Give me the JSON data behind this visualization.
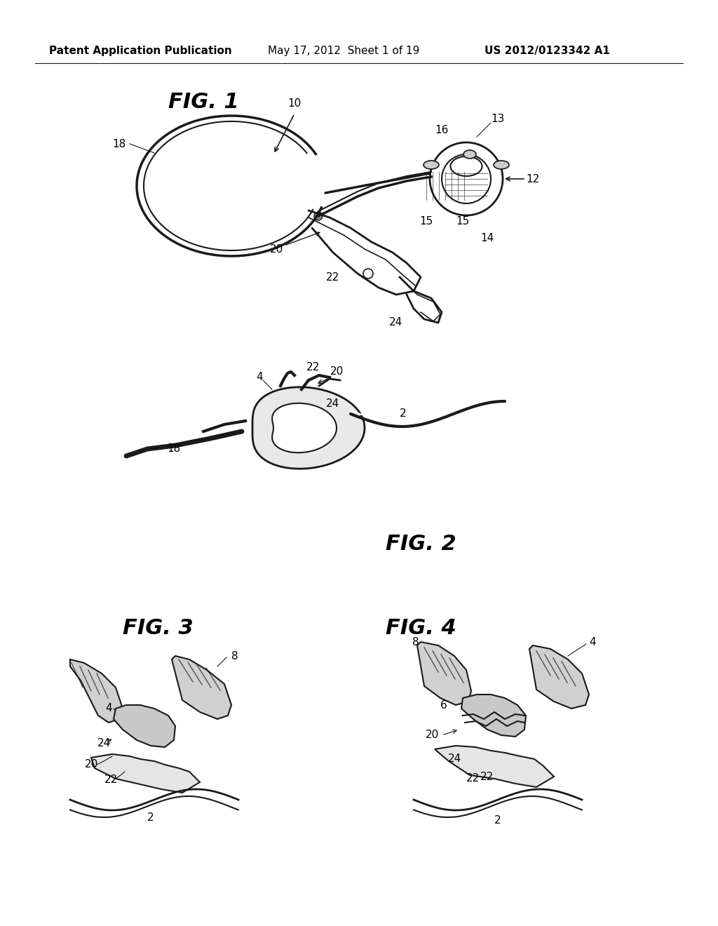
{
  "background_color": "#ffffff",
  "header_text": "Patent Application Publication",
  "header_date": "May 17, 2012  Sheet 1 of 19",
  "header_patent": "US 2012/0123342 A1",
  "fig1_title": "FIG. 1",
  "fig2_title": "FIG. 2",
  "fig3_title": "FIG. 3",
  "fig4_title": "FIG. 4",
  "line_color": "#1a1a1a",
  "text_color": "#000000",
  "label_color": "#222222"
}
